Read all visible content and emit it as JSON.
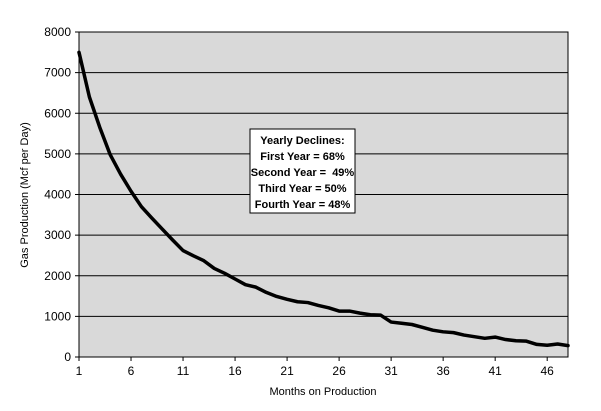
{
  "chart_data": {
    "type": "line",
    "title": "",
    "xlabel": "Months on Production",
    "ylabel": "Gas Production (Mcf per Day)",
    "xlim": [
      1,
      48
    ],
    "ylim": [
      0,
      8000
    ],
    "x_ticks": [
      1,
      6,
      11,
      16,
      21,
      26,
      31,
      36,
      41,
      46
    ],
    "y_ticks": [
      0,
      1000,
      2000,
      3000,
      4000,
      5000,
      6000,
      7000,
      8000
    ],
    "grid": "horizontal",
    "colors": {
      "plot_background": "#d9d9d9",
      "line": "#000000",
      "grid": "#000000",
      "annotation_background": "#ffffff"
    },
    "series": [
      {
        "x": [
          1,
          2,
          3,
          4,
          5,
          6,
          7,
          8,
          9,
          10,
          11,
          12,
          13,
          14,
          15,
          16,
          17,
          18,
          19,
          20,
          21,
          22,
          23,
          24,
          25,
          26,
          27,
          28,
          29,
          30,
          31,
          32,
          33,
          34,
          35,
          36,
          37,
          38,
          39,
          40,
          41,
          42,
          43,
          44,
          45,
          46,
          47,
          48
        ],
        "values": [
          7500,
          6400,
          5650,
          4980,
          4500,
          4080,
          3700,
          3420,
          3150,
          2880,
          2620,
          2490,
          2370,
          2180,
          2060,
          1920,
          1780,
          1720,
          1590,
          1490,
          1420,
          1360,
          1340,
          1270,
          1210,
          1130,
          1130,
          1080,
          1040,
          1030,
          860,
          830,
          800,
          730,
          660,
          620,
          600,
          540,
          500,
          460,
          490,
          430,
          400,
          390,
          310,
          290,
          320,
          280
        ]
      }
    ],
    "annotation": {
      "lines": [
        "Yearly Declines:",
        "First Year = 68%",
        "Second Year =  49%",
        "Third Year = 50%",
        "Fourth Year = 48%"
      ]
    }
  }
}
